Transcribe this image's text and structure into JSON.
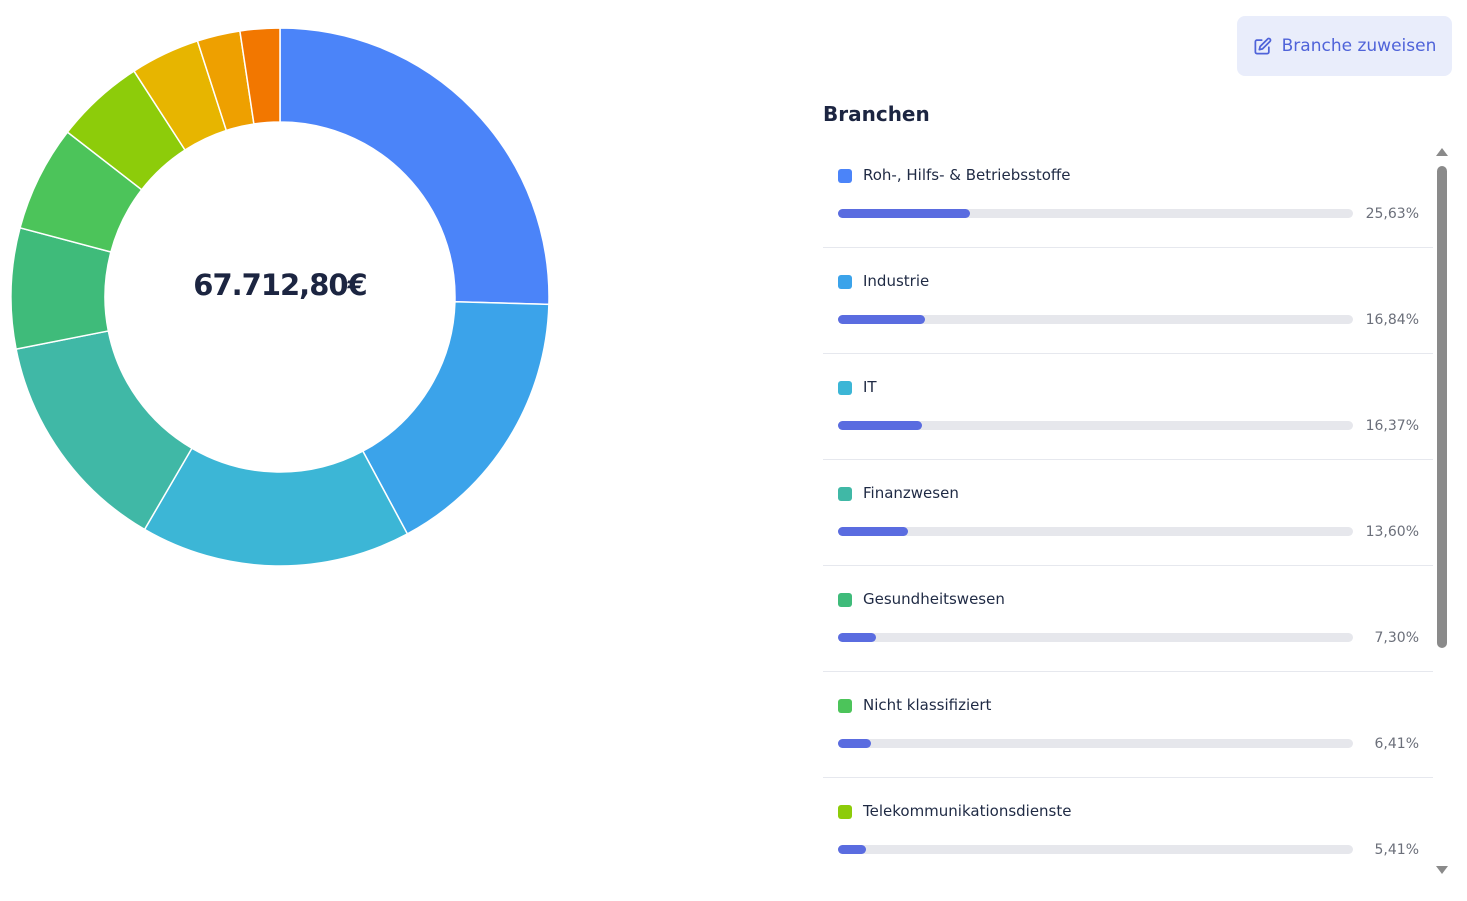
{
  "actions": {
    "assign_label": "Branche zuweisen",
    "assign_icon": "edit-icon"
  },
  "list": {
    "title": "Branchen"
  },
  "chart_data": {
    "type": "pie",
    "variant": "donut",
    "center_label": "67.712,80€",
    "categories": [
      "Roh-, Hilfs- & Betriebsstoffe",
      "Industrie",
      "IT",
      "Finanzwesen",
      "Gesundheitswesen",
      "Nicht klassifiziert",
      "Telekommunikationsdienste",
      "",
      "",
      ""
    ],
    "values": [
      25.63,
      16.84,
      16.37,
      13.6,
      7.3,
      6.41,
      5.41,
      4.2,
      2.6,
      2.4
    ],
    "labels": [
      "25,63%",
      "16,84%",
      "16,37%",
      "13,60%",
      "7,30%",
      "6,41%",
      "5,41%",
      "",
      "",
      ""
    ],
    "colors": [
      "#4b84f9",
      "#3ba3ea",
      "#3cb6d6",
      "#40b8a6",
      "#3fbb7a",
      "#4cc45a",
      "#8dcc0a",
      "#e7b500",
      "#eea000",
      "#f27700"
    ],
    "bar_color": "#5a6ce0"
  }
}
